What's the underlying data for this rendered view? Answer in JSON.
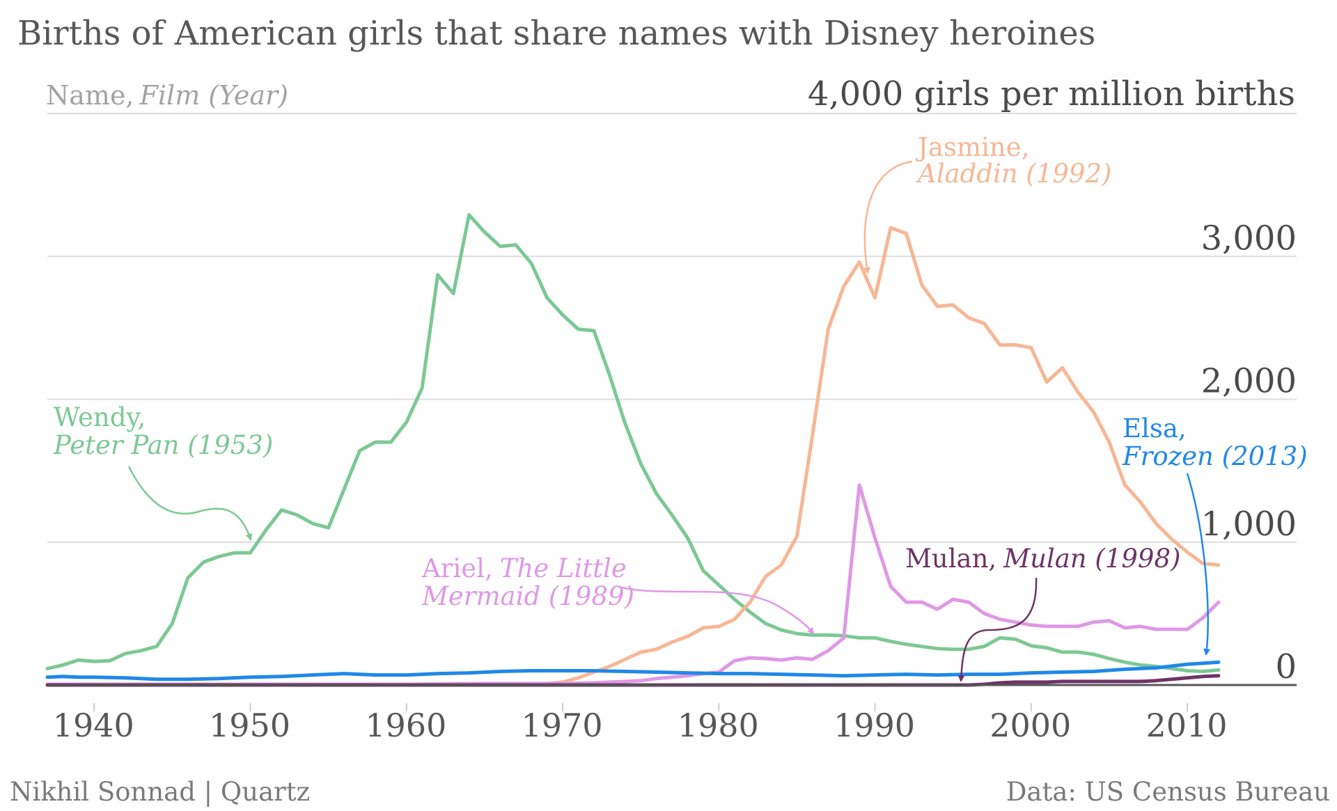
{
  "header": {
    "title": "Births of American girls that share names with Disney heroines",
    "legend_key_name": "Name,",
    "legend_key_film": "Film (Year)",
    "y_unit_label": "4,000 girls per million births"
  },
  "footer": {
    "byline": "Nikhil Sonnad | Quartz",
    "source": "Data: US Census Bureau"
  },
  "colors": {
    "wendy": "#7cc894",
    "jasmine": "#f7b694",
    "ariel": "#df98e6",
    "elsa": "#1f88e8",
    "mulan": "#6e3466",
    "grid": "#dddddd",
    "baseline": "#555555"
  },
  "chart_data": {
    "type": "line",
    "title": "Births of American girls that share names with Disney heroines",
    "ylabel": "girls per million births",
    "xlim": [
      1937,
      2017
    ],
    "ylim": [
      0,
      4000
    ],
    "xticks": [
      {
        "value": 1940,
        "label": "1940"
      },
      {
        "value": 1950,
        "label": "1950"
      },
      {
        "value": 1960,
        "label": "1960"
      },
      {
        "value": 1970,
        "label": "1970"
      },
      {
        "value": 1980,
        "label": "1980"
      },
      {
        "value": 1990,
        "label": "1990"
      },
      {
        "value": 2000,
        "label": "2000"
      },
      {
        "value": 2010,
        "label": "2010"
      }
    ],
    "yticks": [
      {
        "value": 0,
        "label": "0"
      },
      {
        "value": 1000,
        "label": "1,000"
      },
      {
        "value": 2000,
        "label": "2,000"
      },
      {
        "value": 3000,
        "label": "3,000"
      }
    ],
    "grid": true,
    "series": [
      {
        "key": "wendy",
        "name": "Wendy",
        "film": "Peter Pan (1953)",
        "x": [
          1937,
          1938,
          1939,
          1940,
          1941,
          1942,
          1943,
          1944,
          1945,
          1946,
          1947,
          1948,
          1949,
          1950,
          1951,
          1952,
          1953,
          1954,
          1955,
          1956,
          1957,
          1958,
          1959,
          1960,
          1961,
          1962,
          1963,
          1964,
          1965,
          1966,
          1967,
          1968,
          1969,
          1970,
          1971,
          1972,
          1973,
          1974,
          1975,
          1976,
          1977,
          1978,
          1979,
          1980,
          1981,
          1982,
          1983,
          1984,
          1985,
          1986,
          1987,
          1988,
          1989,
          1990,
          1991,
          1992,
          1993,
          1994,
          1995,
          1996,
          1997,
          1998,
          1999,
          2000,
          2001,
          2002,
          2003,
          2004,
          2005,
          2006,
          2007,
          2008,
          2009,
          2010,
          2011,
          2012
        ],
        "y": [
          115,
          140,
          175,
          165,
          170,
          220,
          240,
          270,
          430,
          750,
          860,
          900,
          925,
          925,
          1085,
          1225,
          1190,
          1130,
          1100,
          1370,
          1640,
          1700,
          1700,
          1840,
          2080,
          2870,
          2740,
          3290,
          3170,
          3070,
          3080,
          2950,
          2710,
          2590,
          2490,
          2480,
          2170,
          1830,
          1550,
          1340,
          1190,
          1030,
          800,
          700,
          600,
          510,
          430,
          385,
          360,
          350,
          350,
          345,
          330,
          330,
          305,
          285,
          270,
          255,
          250,
          250,
          270,
          330,
          320,
          275,
          260,
          230,
          230,
          215,
          185,
          160,
          140,
          130,
          115,
          100,
          95,
          105
        ]
      },
      {
        "key": "jasmine",
        "name": "Jasmine",
        "film": "Aladdin (1992)",
        "x": [
          1937,
          1940,
          1945,
          1950,
          1955,
          1960,
          1965,
          1967,
          1969,
          1970,
          1971,
          1972,
          1973,
          1974,
          1975,
          1976,
          1977,
          1978,
          1979,
          1980,
          1981,
          1982,
          1983,
          1984,
          1985,
          1986,
          1987,
          1988,
          1989,
          1990,
          1991,
          1992,
          1993,
          1994,
          1995,
          1996,
          1997,
          1998,
          1999,
          2000,
          2001,
          2002,
          2003,
          2004,
          2005,
          2006,
          2007,
          2008,
          2009,
          2010,
          2011,
          2012
        ],
        "y": [
          0,
          0,
          0,
          0,
          0,
          0,
          0,
          5,
          10,
          20,
          50,
          90,
          130,
          180,
          230,
          250,
          300,
          340,
          400,
          410,
          460,
          580,
          760,
          840,
          1040,
          1750,
          2490,
          2790,
          2960,
          2710,
          3200,
          3160,
          2800,
          2650,
          2660,
          2570,
          2530,
          2380,
          2380,
          2360,
          2120,
          2220,
          2050,
          1910,
          1700,
          1400,
          1280,
          1130,
          1020,
          930,
          850,
          840
        ]
      },
      {
        "key": "ariel",
        "name": "Ariel",
        "film": "The Little Mermaid (1989)",
        "x": [
          1937,
          1940,
          1945,
          1950,
          1955,
          1960,
          1965,
          1970,
          1972,
          1973,
          1974,
          1975,
          1976,
          1977,
          1978,
          1979,
          1980,
          1981,
          1982,
          1983,
          1984,
          1985,
          1986,
          1987,
          1988,
          1989,
          1990,
          1991,
          1992,
          1993,
          1994,
          1995,
          1996,
          1997,
          1998,
          1999,
          2000,
          2001,
          2002,
          2003,
          2004,
          2005,
          2006,
          2007,
          2008,
          2009,
          2010,
          2011,
          2012
        ],
        "y": [
          5,
          5,
          5,
          5,
          5,
          5,
          10,
          10,
          15,
          20,
          25,
          30,
          45,
          55,
          65,
          80,
          90,
          170,
          190,
          185,
          175,
          190,
          180,
          240,
          330,
          1400,
          1030,
          690,
          580,
          580,
          530,
          600,
          580,
          500,
          460,
          440,
          420,
          410,
          410,
          410,
          440,
          450,
          400,
          410,
          390,
          390,
          390,
          470,
          580
        ]
      },
      {
        "key": "elsa",
        "name": "Elsa",
        "film": "Frozen (2013)",
        "x": [
          1937,
          1938,
          1939,
          1940,
          1942,
          1944,
          1946,
          1948,
          1950,
          1952,
          1954,
          1956,
          1958,
          1960,
          1962,
          1964,
          1966,
          1968,
          1970,
          1972,
          1974,
          1976,
          1978,
          1980,
          1982,
          1984,
          1986,
          1988,
          1990,
          1992,
          1994,
          1996,
          1998,
          2000,
          2002,
          2004,
          2006,
          2008,
          2010,
          2012
        ],
        "y": [
          55,
          60,
          55,
          55,
          50,
          40,
          40,
          45,
          55,
          60,
          70,
          80,
          70,
          70,
          80,
          85,
          95,
          100,
          100,
          100,
          95,
          90,
          85,
          80,
          80,
          75,
          70,
          65,
          70,
          75,
          70,
          75,
          75,
          85,
          90,
          95,
          110,
          120,
          145,
          160
        ]
      },
      {
        "key": "mulan",
        "name": "Mulan",
        "film": "Mulan (1998)",
        "x": [
          1937,
          1996,
          1997,
          1998,
          1999,
          2000,
          2001,
          2002,
          2003,
          2004,
          2005,
          2006,
          2007,
          2008,
          2009,
          2010,
          2011,
          2012
        ],
        "y": [
          0,
          0,
          5,
          15,
          20,
          20,
          20,
          25,
          25,
          25,
          25,
          25,
          25,
          30,
          40,
          50,
          60,
          65
        ]
      }
    ],
    "annotations": [
      {
        "series": "wendy",
        "name": "Wendy,",
        "film": "Peter Pan (1953)"
      },
      {
        "series": "jasmine",
        "name": "Jasmine,",
        "film": "Aladdin (1992)"
      },
      {
        "series": "ariel",
        "name": "Ariel,",
        "film_line1": "The Little",
        "film_line2": "Mermaid (1989)"
      },
      {
        "series": "mulan",
        "name": "Mulan,",
        "film": "Mulan (1998)"
      },
      {
        "series": "elsa",
        "name": "Elsa,",
        "film": "Frozen (2013)"
      }
    ]
  }
}
